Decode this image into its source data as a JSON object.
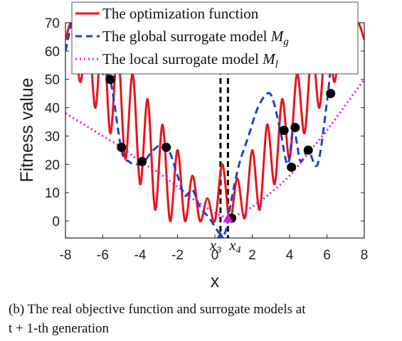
{
  "chart_data": {
    "type": "line",
    "xlabel": "x",
    "ylabel": "Fitness value",
    "xlim": [
      -8,
      8
    ],
    "ylim": [
      -6,
      70
    ],
    "xticks": [
      "-8",
      "-6",
      "-4",
      "-2",
      "0",
      "2",
      "4",
      "6",
      "8"
    ],
    "yticks": [
      "0",
      "10",
      "20",
      "30",
      "40",
      "50",
      "60",
      "70"
    ],
    "grid": false,
    "legend_position": "top",
    "series": [
      {
        "name": "The optimization function",
        "name_symbol": "",
        "color": "#e8141b",
        "style": "solid",
        "x": [
          -8.0,
          -7.6,
          -7.2,
          -6.8,
          -6.4,
          -6.0,
          -5.6,
          -5.2,
          -4.8,
          -4.4,
          -4.0,
          -3.6,
          -3.2,
          -2.8,
          -2.4,
          -2.0,
          -1.6,
          -1.2,
          -0.8,
          -0.4,
          0.0,
          0.4,
          0.8,
          1.2,
          1.6,
          2.0,
          2.4,
          2.8,
          3.2,
          3.6,
          4.0,
          4.4,
          4.8,
          5.2,
          5.6,
          6.0,
          6.4,
          6.8,
          7.2,
          7.6,
          8.0
        ],
        "y": [
          64,
          70,
          49,
          70,
          40,
          70,
          31,
          61,
          22,
          52,
          13,
          43,
          4,
          34,
          0,
          25,
          0,
          16,
          0,
          8,
          0,
          20,
          0,
          15,
          1,
          25,
          4,
          34,
          13,
          43,
          22,
          52,
          31,
          61,
          40,
          70,
          49,
          70,
          58,
          70,
          64
        ]
      },
      {
        "name": "The global surrogate model ",
        "name_symbol": "M_g",
        "color": "#1f3fd1",
        "style": "dashed",
        "x": [
          -8.0,
          -7.5,
          -7.0,
          -6.5,
          -6.0,
          -5.6,
          -5.0,
          -4.6,
          -4.2,
          -3.8,
          -3.3,
          -2.8,
          -2.4,
          -2.0,
          -1.6,
          -1.2,
          -0.8,
          -0.3,
          0.2,
          0.4,
          0.6,
          0.9,
          1.3,
          1.8,
          2.3,
          2.8,
          3.1,
          3.5,
          3.9,
          4.2,
          4.4,
          4.6,
          5.0,
          5.5,
          6.0,
          6.3,
          6.6,
          7.0
        ],
        "y": [
          60,
          72,
          58,
          70,
          52,
          50,
          25,
          21,
          20,
          21,
          25,
          27,
          24,
          16,
          9,
          11,
          5,
          1,
          -4,
          -5,
          -3,
          8,
          20,
          30,
          40,
          45,
          43,
          32,
          20,
          33,
          27,
          21,
          25,
          20,
          42,
          60,
          68,
          72
        ]
      },
      {
        "name": "The local surrogate model ",
        "name_symbol": "M_l",
        "color": "#e017e0",
        "style": "dotted",
        "x": [
          -8,
          -7,
          -6,
          -5,
          -4,
          -3,
          -2,
          -1,
          0,
          0.5,
          0.8,
          1,
          2,
          3,
          4,
          5,
          6,
          7,
          8
        ],
        "y": [
          38,
          34,
          30,
          26,
          21,
          17,
          12,
          7,
          3,
          1.5,
          1.0,
          1.5,
          5,
          10,
          16,
          24,
          32,
          41,
          50
        ]
      }
    ],
    "samples": {
      "x": [
        -5.6,
        -5.0,
        -3.9,
        -2.6,
        0.9,
        3.7,
        4.1,
        4.3,
        5.0,
        6.2
      ],
      "y": [
        50,
        26,
        21,
        26,
        1,
        32,
        19,
        33,
        25,
        45
      ]
    },
    "markers": [
      {
        "x": 0.3,
        "y": -5.5,
        "shape": "triangle",
        "color": "#1f3fd1",
        "label": "x",
        "subscript": "3"
      },
      {
        "x": 0.7,
        "y": 1.0,
        "shape": "triangle",
        "color": "#e017e0",
        "label": "x",
        "subscript": "4"
      }
    ],
    "vlines": [
      0.3,
      0.7
    ]
  },
  "caption": {
    "line1": "(b) The real objective function and surrogate models at",
    "line2": "t + 1-th generation"
  }
}
